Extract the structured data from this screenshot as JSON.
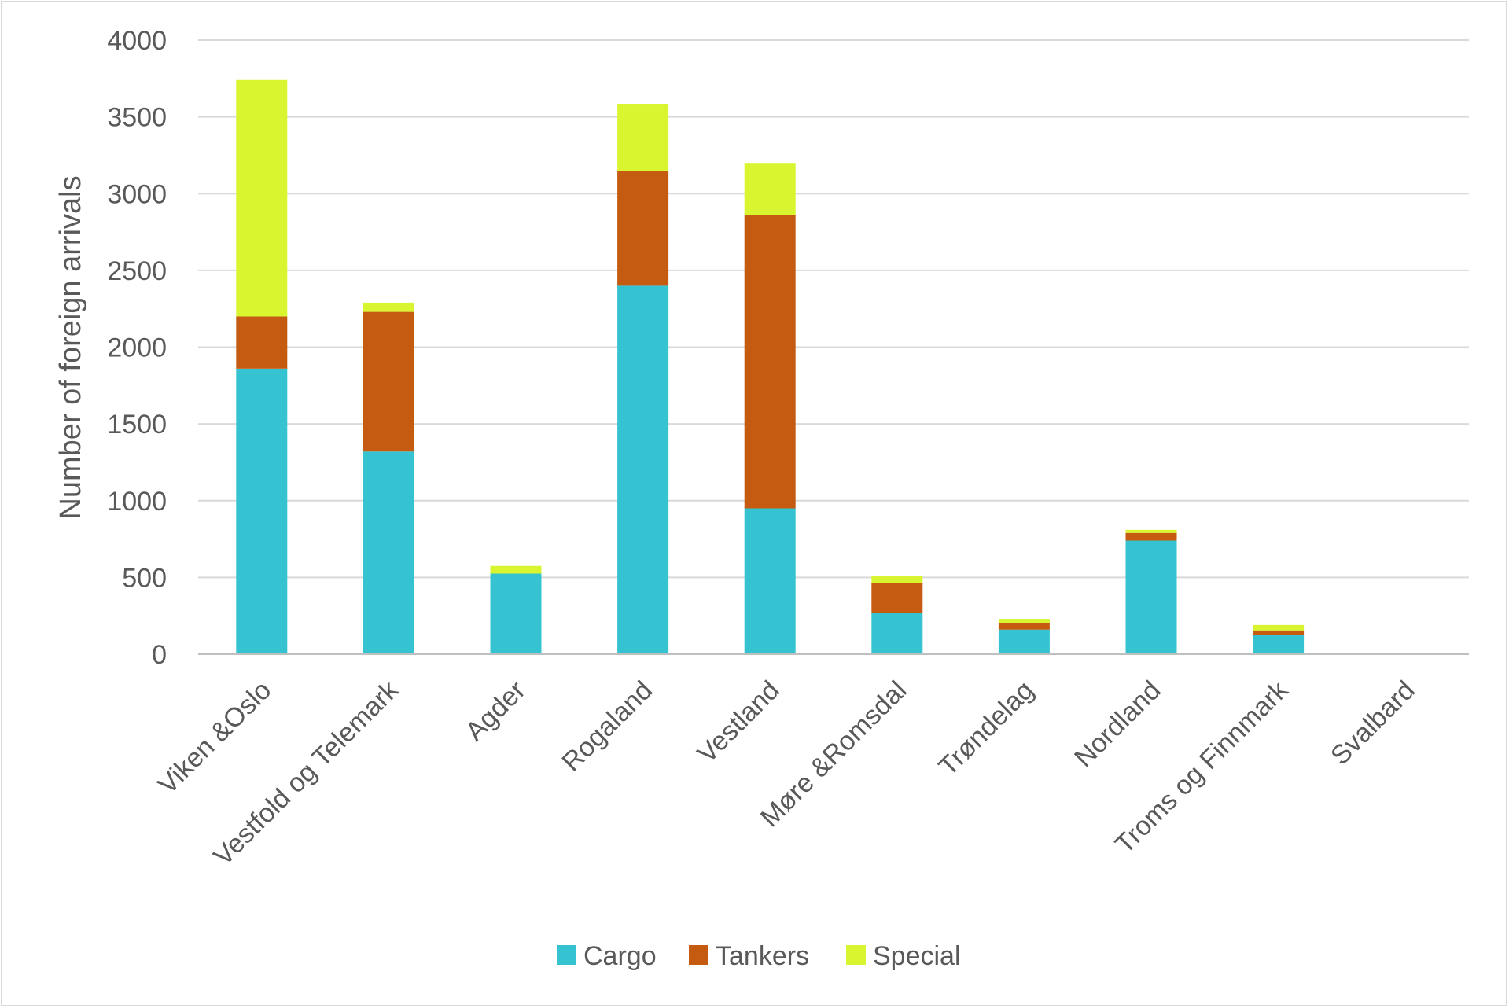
{
  "chart_data": {
    "type": "bar",
    "stacked": true,
    "title": "",
    "xlabel": "",
    "ylabel": "Number of foreign arrivals",
    "ylim": [
      0,
      4000
    ],
    "yticks": [
      0,
      500,
      1000,
      1500,
      2000,
      2500,
      3000,
      3500,
      4000
    ],
    "grid": true,
    "legend_position": "bottom",
    "categories": [
      "Viken &Oslo",
      "Vestfold og Telemark",
      "Agder",
      "Rogaland",
      "Vestland",
      "Møre &Romsdal",
      "Trøndelag",
      "Nordland",
      "Troms og Finnmark",
      "Svalbard"
    ],
    "series": [
      {
        "name": "Cargo",
        "color": "#36c3d1",
        "values": [
          1860,
          1320,
          525,
          2400,
          950,
          270,
          160,
          740,
          125,
          0
        ]
      },
      {
        "name": "Tankers",
        "color": "#c55a11",
        "values": [
          340,
          910,
          0,
          750,
          1910,
          195,
          45,
          50,
          30,
          0
        ]
      },
      {
        "name": "Special",
        "color": "#d9f52f",
        "values": [
          1540,
          60,
          50,
          435,
          340,
          45,
          25,
          20,
          35,
          0
        ]
      }
    ]
  }
}
